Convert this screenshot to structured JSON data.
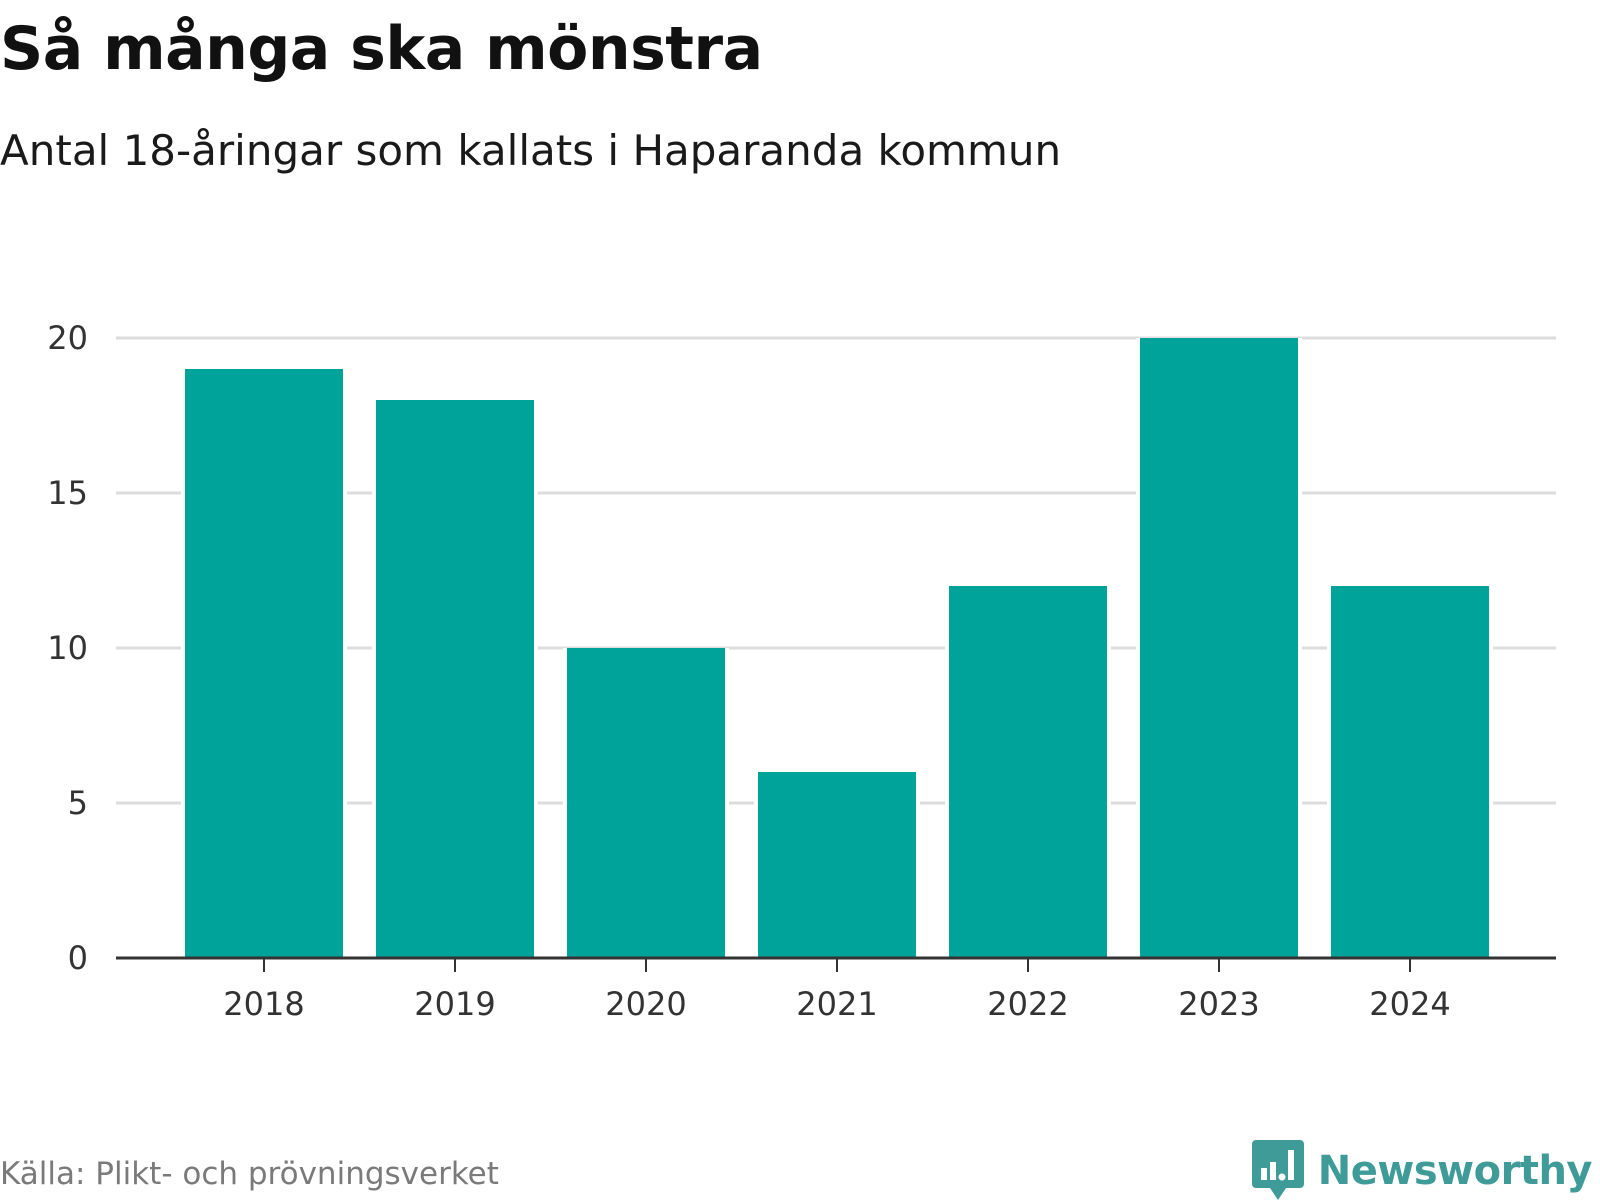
{
  "title": "Så många ska mönstra",
  "subtitle": "Antal 18-åringar som kallats i Haparanda kommun",
  "source": "Källa: Plikt- och prövningsverket",
  "brand": {
    "name": "Newsworthy",
    "icon": "bar-chart-speech-bubble-icon",
    "color": "#3e9b97"
  },
  "colors": {
    "bar": "#00a39a",
    "grid": "#dddddd",
    "axis": "#333333"
  },
  "chart_data": {
    "type": "bar",
    "categories": [
      "2018",
      "2019",
      "2020",
      "2021",
      "2022",
      "2023",
      "2024"
    ],
    "values": [
      19,
      18,
      10,
      6,
      12,
      20,
      12
    ],
    "ylim": [
      0,
      20
    ],
    "yticks": [
      0,
      5,
      10,
      15,
      20
    ],
    "grid": true,
    "xlabel": "",
    "ylabel": ""
  }
}
